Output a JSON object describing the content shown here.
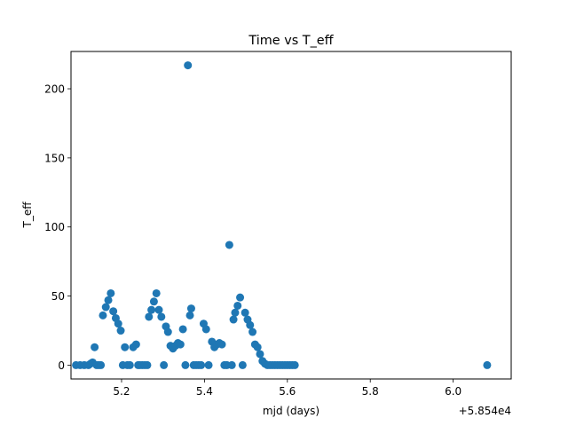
{
  "chart_data": {
    "type": "scatter",
    "title": "Time vs T_eff",
    "xlabel": "mjd (days)",
    "ylabel": "T_eff",
    "x_offset_label": "+5.854e4",
    "xlim": [
      58545.078,
      58546.14
    ],
    "ylim": [
      -10,
      227
    ],
    "xticks": [
      {
        "value": 58545.2,
        "label": "5.2"
      },
      {
        "value": 58545.4,
        "label": "5.4"
      },
      {
        "value": 58545.6,
        "label": "5.6"
      },
      {
        "value": 58545.8,
        "label": "5.8"
      },
      {
        "value": 58546.0,
        "label": "6.0"
      }
    ],
    "yticks": [
      {
        "value": 0,
        "label": "0"
      },
      {
        "value": 50,
        "label": "50"
      },
      {
        "value": 100,
        "label": "100"
      },
      {
        "value": 150,
        "label": "150"
      },
      {
        "value": 200,
        "label": "200"
      }
    ],
    "grid": false,
    "color": "#1f77b4",
    "series": [
      {
        "x": [
          58545.09,
          58545.1,
          58545.11,
          58545.12,
          58545.125,
          58545.13,
          58545.135,
          58545.14,
          58545.145,
          58545.15,
          58545.155,
          58545.162,
          58545.168,
          58545.174,
          58545.18,
          58545.186,
          58545.192,
          58545.198,
          58545.203,
          58545.208,
          58545.214,
          58545.22,
          58545.228,
          58545.235,
          58545.24,
          58545.244,
          58545.25,
          58545.256,
          58545.262,
          58545.266,
          58545.272,
          58545.278,
          58545.284,
          58545.29,
          58545.296,
          58545.302,
          58545.307,
          58545.312,
          58545.318,
          58545.324,
          58545.33,
          58545.336,
          58545.342,
          58545.348,
          58545.354,
          58545.36,
          58545.365,
          58545.368,
          58545.374,
          58545.38,
          58545.386,
          58545.392,
          58545.398,
          58545.404,
          58545.41,
          58545.418,
          58545.424,
          58545.43,
          58545.436,
          58545.442,
          58545.448,
          58545.454,
          58545.46,
          58545.466,
          58545.47,
          58545.474,
          58545.48,
          58545.486,
          58545.492,
          58545.498,
          58545.504,
          58545.51,
          58545.516,
          58545.522,
          58545.528,
          58545.534,
          58545.54,
          58545.546,
          58545.552,
          58545.558,
          58545.564,
          58545.57,
          58545.576,
          58545.582,
          58545.588,
          58545.594,
          58545.6,
          58545.606,
          58545.612,
          58545.618,
          58546.082
        ],
        "y": [
          0,
          0,
          0,
          0,
          1,
          2,
          13,
          0,
          0,
          0,
          36,
          42,
          47,
          52,
          39,
          34,
          30,
          25,
          0,
          13,
          0,
          0,
          13,
          15,
          0,
          0,
          0,
          0,
          0,
          35,
          40,
          46,
          52,
          40,
          35,
          0,
          28,
          24,
          14,
          12,
          14,
          16,
          15,
          26,
          0,
          217,
          36,
          41,
          0,
          0,
          0,
          0,
          30,
          26,
          0,
          17,
          13,
          15,
          16,
          15,
          0,
          0,
          87,
          0,
          33,
          38,
          43,
          49,
          0,
          38,
          33,
          29,
          24,
          15,
          13,
          8,
          3,
          1,
          0,
          0,
          0,
          0,
          0,
          0,
          0,
          0,
          0,
          0,
          0,
          0,
          0
        ]
      }
    ]
  }
}
